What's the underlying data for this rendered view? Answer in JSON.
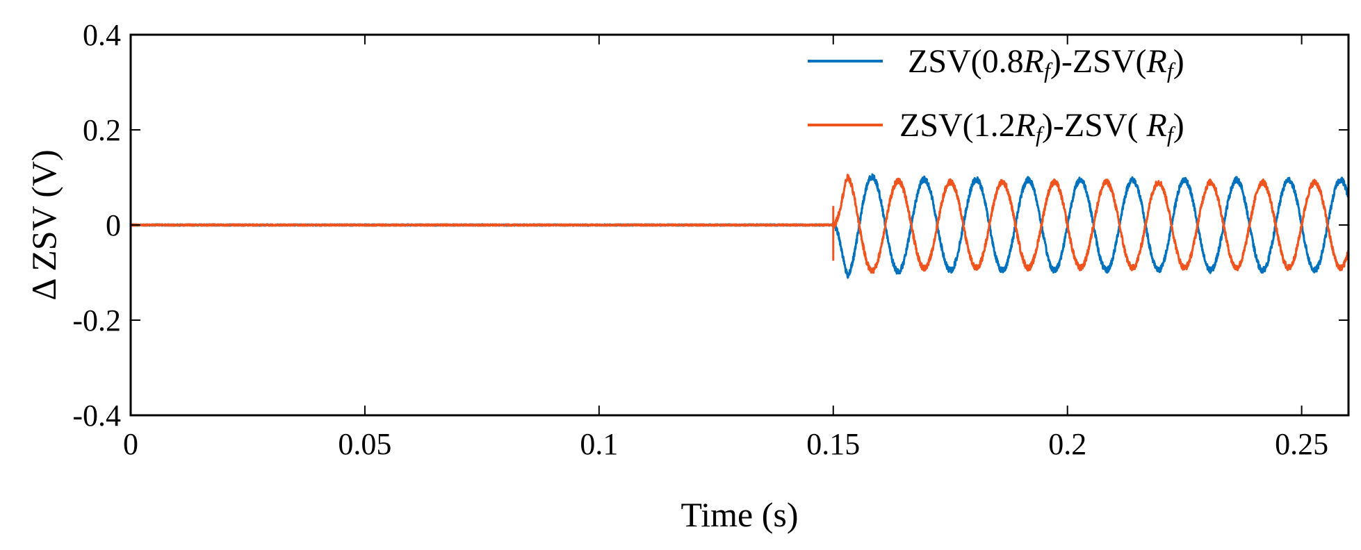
{
  "chart_data": {
    "type": "line",
    "title": "",
    "xlabel": "Time (s)",
    "ylabel": "Δ ZSV (V)",
    "xlim": [
      0,
      0.26
    ],
    "ylim": [
      -0.4,
      0.4
    ],
    "xticks": [
      0,
      0.05,
      0.1,
      0.15,
      0.2,
      0.25
    ],
    "xtick_labels": [
      "0",
      "0.05",
      "0.1",
      "0.15",
      "0.2",
      "0.25"
    ],
    "yticks": [
      -0.4,
      -0.2,
      0,
      0.2,
      0.4
    ],
    "ytick_labels": [
      "-0.4",
      "-0.2",
      "0",
      "0.2",
      "0.4"
    ],
    "grid": false,
    "legend_position": "top-right",
    "series": [
      {
        "name": "ZSV(0.8Rf)-ZSV(Rf)",
        "legend_parts": {
          "a": "ZSV(0.8",
          "b": "R",
          "c": "f",
          "d": ")-ZSV(",
          "e": "R",
          "f": "f",
          "g": ")"
        },
        "color": "#0072BD",
        "fault_time": 0.15,
        "frequency_hz": 90,
        "steady_amplitude": 0.095,
        "peak_value": 0.12,
        "peak_time": 0.159,
        "initial_sign": -1
      },
      {
        "name": "ZSV(1.2Rf)-ZSV( Rf)",
        "legend_parts": {
          "a": "ZSV(1.2",
          "b": "R",
          "c": "f",
          "d": ")-ZSV( ",
          "e": "R",
          "f": "f",
          "g": ")"
        },
        "color": "#F0541E",
        "fault_time": 0.15,
        "frequency_hz": 90,
        "steady_amplitude": 0.09,
        "trough_value": -0.115,
        "trough_time": 0.158,
        "initial_sign": 1
      }
    ]
  }
}
